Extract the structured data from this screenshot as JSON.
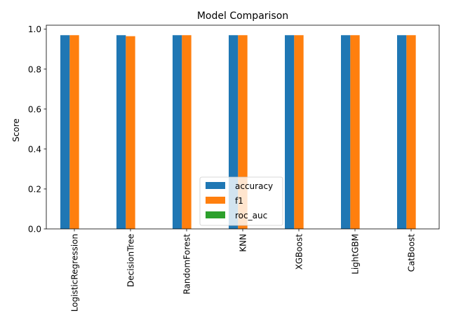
{
  "chart_data": {
    "type": "bar",
    "title": "Model Comparison",
    "xlabel": "",
    "ylabel": "Score",
    "ylim": [
      0,
      1.02
    ],
    "yticks": [
      "0.0",
      "0.2",
      "0.4",
      "0.6",
      "0.8",
      "1.0"
    ],
    "categories": [
      "LogisticRegression",
      "DecisionTree",
      "RandomForest",
      "KNN",
      "XGBoost",
      "LightGBM",
      "CatBoost"
    ],
    "series": [
      {
        "name": "accuracy",
        "color": "#1f77b4",
        "values": [
          0.97,
          0.97,
          0.97,
          0.97,
          0.97,
          0.97,
          0.97
        ]
      },
      {
        "name": "f1",
        "color": "#ff7f0e",
        "values": [
          0.97,
          0.965,
          0.97,
          0.97,
          0.97,
          0.97,
          0.97
        ]
      },
      {
        "name": "roc_auc",
        "color": "#2ca02c",
        "values": [
          0,
          0,
          0,
          0,
          0,
          0,
          0
        ]
      }
    ],
    "grid": false,
    "legend_position": "lower center"
  }
}
